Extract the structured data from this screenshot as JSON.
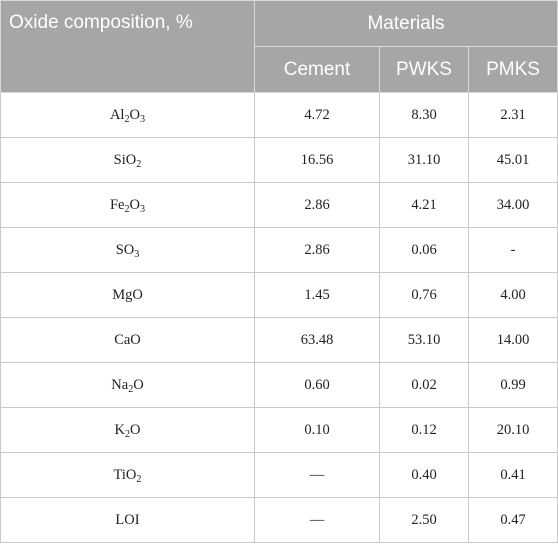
{
  "table": {
    "header_oxide": "Oxide composition, %",
    "header_materials": "Materials",
    "columns": [
      "Cement",
      "PWKS",
      "PMKS"
    ],
    "rows": [
      {
        "oxide": {
          "base": "Al",
          "s1": "2",
          "mid": "O",
          "s2": "3"
        },
        "values": [
          "4.72",
          "8.30",
          "2.31"
        ]
      },
      {
        "oxide": {
          "base": "SiO",
          "s1": "2",
          "mid": "",
          "s2": ""
        },
        "values": [
          "16.56",
          "31.10",
          "45.01"
        ]
      },
      {
        "oxide": {
          "base": "Fe",
          "s1": "2",
          "mid": "O",
          "s2": "3"
        },
        "values": [
          "2.86",
          "4.21",
          "34.00"
        ]
      },
      {
        "oxide": {
          "base": "SO",
          "s1": "3",
          "mid": "",
          "s2": ""
        },
        "values": [
          "2.86",
          "0.06",
          "-"
        ]
      },
      {
        "oxide": {
          "base": "MgO",
          "s1": "",
          "mid": "",
          "s2": ""
        },
        "values": [
          "1.45",
          "0.76",
          "4.00"
        ]
      },
      {
        "oxide": {
          "base": "CaO",
          "s1": "",
          "mid": "",
          "s2": ""
        },
        "values": [
          "63.48",
          "53.10",
          "14.00"
        ]
      },
      {
        "oxide": {
          "base": "Na",
          "s1": "2",
          "mid": "O",
          "s2": ""
        },
        "values": [
          "0.60",
          "0.02",
          "0.99"
        ]
      },
      {
        "oxide": {
          "base": "K",
          "s1": "2",
          "mid": "O",
          "s2": ""
        },
        "values": [
          "0.10",
          "0.12",
          "20.10"
        ]
      },
      {
        "oxide": {
          "base": "TiO",
          "s1": "2",
          "mid": "",
          "s2": ""
        },
        "values": [
          "—",
          "0.40",
          "0.41"
        ]
      },
      {
        "oxide": {
          "base": "LOI",
          "s1": "",
          "mid": "",
          "s2": ""
        },
        "values": [
          "—",
          "2.50",
          "0.47"
        ]
      }
    ]
  }
}
